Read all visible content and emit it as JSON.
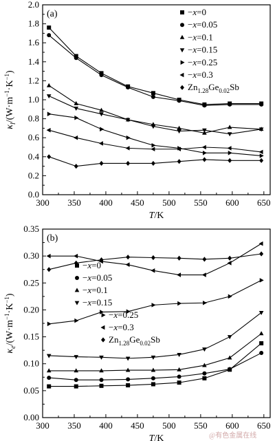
{
  "watermark": "@有色金属在线",
  "chart_data": [
    {
      "type": "line",
      "panel_label": "(a)",
      "xlabel": "T/K",
      "ylabel": "κl/(W·m⁻¹·K⁻¹)",
      "xlim": [
        300,
        660
      ],
      "ylim": [
        0.0,
        2.0
      ],
      "xticks": [
        300,
        350,
        400,
        450,
        500,
        550,
        600,
        650
      ],
      "yticks": [
        0.0,
        0.2,
        0.4,
        0.6,
        0.8,
        1.0,
        1.2,
        1.4,
        1.6,
        1.8,
        2.0
      ],
      "legend_position": "top-right",
      "x": [
        310,
        353,
        393,
        435,
        475,
        516,
        556,
        596,
        646
      ],
      "series": [
        {
          "name": "x=0",
          "marker": "square",
          "values": [
            1.76,
            1.46,
            1.28,
            1.14,
            1.07,
            1.0,
            0.95,
            0.96,
            0.96
          ]
        },
        {
          "name": "x=0.05",
          "marker": "circle",
          "values": [
            1.68,
            1.44,
            1.26,
            1.13,
            1.03,
            0.99,
            0.94,
            0.95,
            0.95
          ]
        },
        {
          "name": "x=0.1",
          "marker": "triangle-up",
          "values": [
            1.15,
            0.96,
            0.89,
            0.79,
            0.74,
            0.7,
            0.65,
            0.71,
            0.69
          ]
        },
        {
          "name": "x=0.15",
          "marker": "triangle-down",
          "values": [
            1.04,
            0.91,
            0.85,
            0.79,
            0.72,
            0.67,
            0.68,
            0.64,
            0.69
          ]
        },
        {
          "name": "x=0.25",
          "marker": "triangle-right",
          "values": [
            0.85,
            0.81,
            0.69,
            0.6,
            0.52,
            0.49,
            0.44,
            0.44,
            0.41
          ]
        },
        {
          "name": "x=0.3",
          "marker": "triangle-left",
          "values": [
            0.68,
            0.6,
            0.54,
            0.49,
            0.48,
            0.48,
            0.5,
            0.49,
            0.45
          ]
        },
        {
          "name": "Zn1.28Ge0.02Sb",
          "marker": "diamond",
          "values": [
            0.4,
            0.3,
            0.33,
            0.33,
            0.33,
            0.35,
            0.37,
            0.36,
            0.36
          ]
        }
      ]
    },
    {
      "type": "line",
      "panel_label": "(b)",
      "xlabel": "T/K",
      "ylabel": "κe/(W·m⁻¹·K⁻¹)",
      "xlim": [
        300,
        660
      ],
      "ylim": [
        0.0,
        0.35
      ],
      "xticks": [
        300,
        350,
        400,
        450,
        500,
        550,
        600,
        650
      ],
      "yticks": [
        0.0,
        0.05,
        0.1,
        0.15,
        0.2,
        0.25,
        0.3,
        0.35
      ],
      "legend_position": "center-left",
      "x": [
        310,
        353,
        393,
        435,
        475,
        516,
        556,
        596,
        646
      ],
      "series": [
        {
          "name": "x=0",
          "marker": "square",
          "values": [
            0.058,
            0.058,
            0.059,
            0.06,
            0.062,
            0.065,
            0.073,
            0.089,
            0.138
          ]
        },
        {
          "name": "x=0.05",
          "marker": "circle",
          "values": [
            0.074,
            0.07,
            0.07,
            0.071,
            0.073,
            0.076,
            0.082,
            0.09,
            0.12
          ]
        },
        {
          "name": "x=0.1",
          "marker": "triangle-up",
          "values": [
            0.087,
            0.087,
            0.087,
            0.088,
            0.088,
            0.089,
            0.097,
            0.111,
            0.156
          ]
        },
        {
          "name": "x=0.15",
          "marker": "triangle-down",
          "values": [
            0.115,
            0.113,
            0.112,
            0.11,
            0.112,
            0.117,
            0.127,
            0.15,
            0.195
          ]
        },
        {
          "name": "x=0.25",
          "marker": "triangle-right",
          "values": [
            0.174,
            0.18,
            0.196,
            0.197,
            0.209,
            0.212,
            0.213,
            0.225,
            0.255
          ]
        },
        {
          "name": "x=0.3",
          "marker": "triangle-left",
          "values": [
            0.3,
            0.3,
            0.29,
            0.284,
            0.273,
            0.265,
            0.265,
            0.287,
            0.323
          ]
        },
        {
          "name": "Zn1.28Ge0.02Sb",
          "marker": "diamond",
          "values": [
            0.275,
            0.287,
            0.293,
            0.298,
            0.297,
            0.296,
            0.294,
            0.296,
            0.304
          ]
        }
      ]
    }
  ]
}
